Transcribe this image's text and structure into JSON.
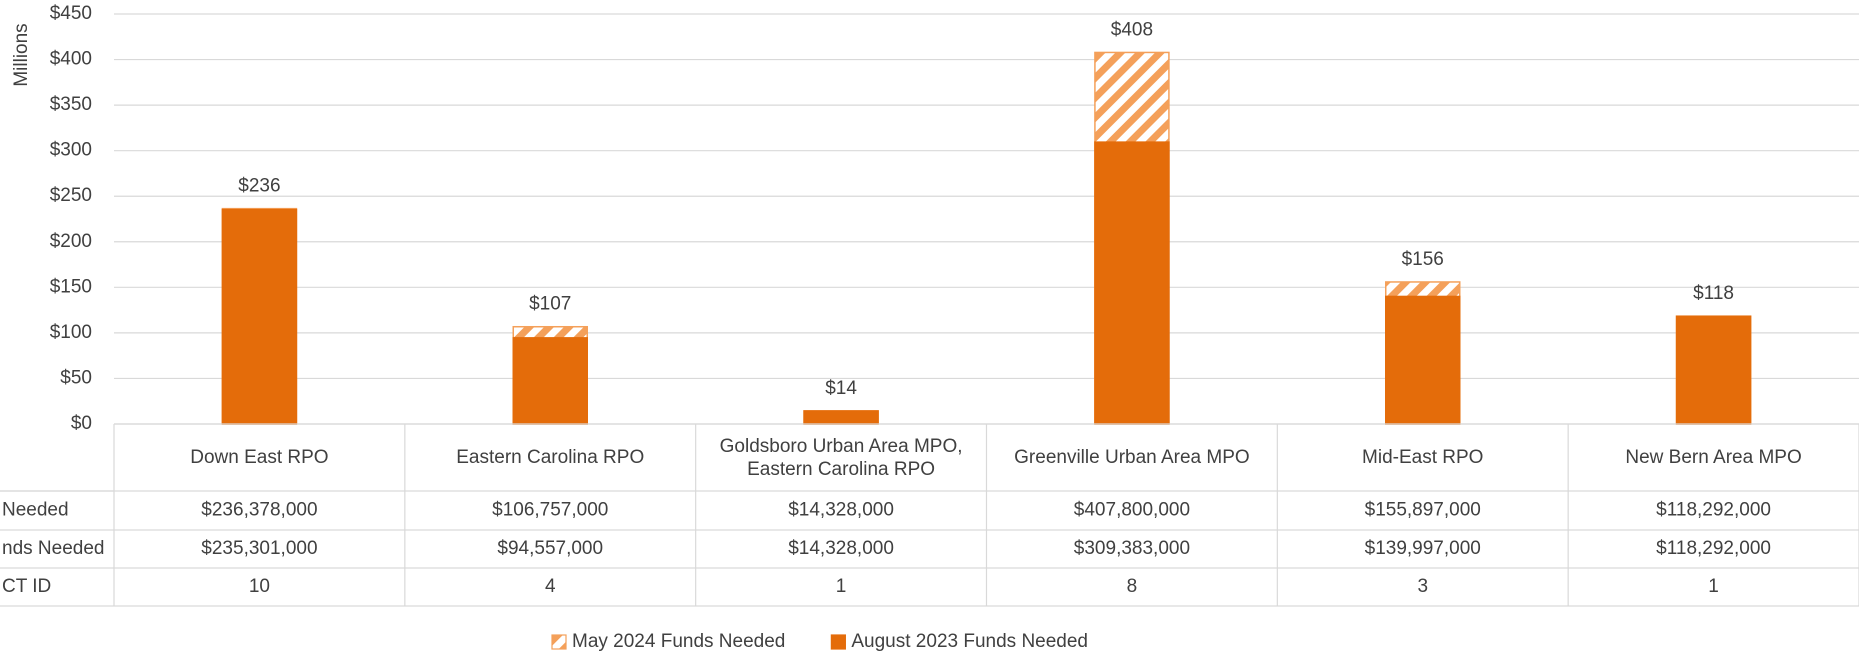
{
  "chart_data": {
    "type": "bar",
    "y_label": "Millions",
    "categories": [
      "Down East RPO",
      "Eastern Carolina RPO",
      "Goldsboro Urban Area MPO, Eastern Carolina RPO",
      "Greenville Urban Area MPO",
      "Mid-East RPO",
      "New Bern Area MPO"
    ],
    "series": [
      {
        "name": "May 2024 Funds Needed",
        "color": "#f4a05a",
        "pattern": "hatch",
        "values": [
          236.378,
          106.757,
          14.328,
          407.8,
          155.897,
          118.292
        ],
        "value_labels": [
          "$236",
          "$107",
          "$14",
          "$408",
          "$156",
          "$118"
        ]
      },
      {
        "name": "August 2023 Funds Needed",
        "color": "#e46c0a",
        "values": [
          235.301,
          94.557,
          14.328,
          309.383,
          139.997,
          118.292
        ]
      }
    ],
    "ylim": [
      0,
      450
    ],
    "yticks": [
      {
        "value": 0,
        "label": "$0"
      },
      {
        "value": 50,
        "label": "$50"
      },
      {
        "value": 100,
        "label": "$100"
      },
      {
        "value": 150,
        "label": "$150"
      },
      {
        "value": 200,
        "label": "$200"
      },
      {
        "value": 250,
        "label": "$250"
      },
      {
        "value": 300,
        "label": "$300"
      },
      {
        "value": 350,
        "label": "$350"
      },
      {
        "value": 400,
        "label": "$400"
      },
      {
        "value": 450,
        "label": "$450"
      }
    ],
    "grid": true,
    "legend": "bottom",
    "data_table": {
      "rows": [
        {
          "label": "Needed",
          "cells": [
            "$236,378,000",
            "$106,757,000",
            "$14,328,000",
            "$407,800,000",
            "$155,897,000",
            "$118,292,000"
          ]
        },
        {
          "label": "nds Needed",
          "cells": [
            "$235,301,000",
            "$94,557,000",
            "$14,328,000",
            "$309,383,000",
            "$139,997,000",
            "$118,292,000"
          ]
        },
        {
          "label": "CT ID",
          "cells": [
            "10",
            "4",
            "1",
            "8",
            "3",
            "1"
          ]
        }
      ]
    }
  }
}
